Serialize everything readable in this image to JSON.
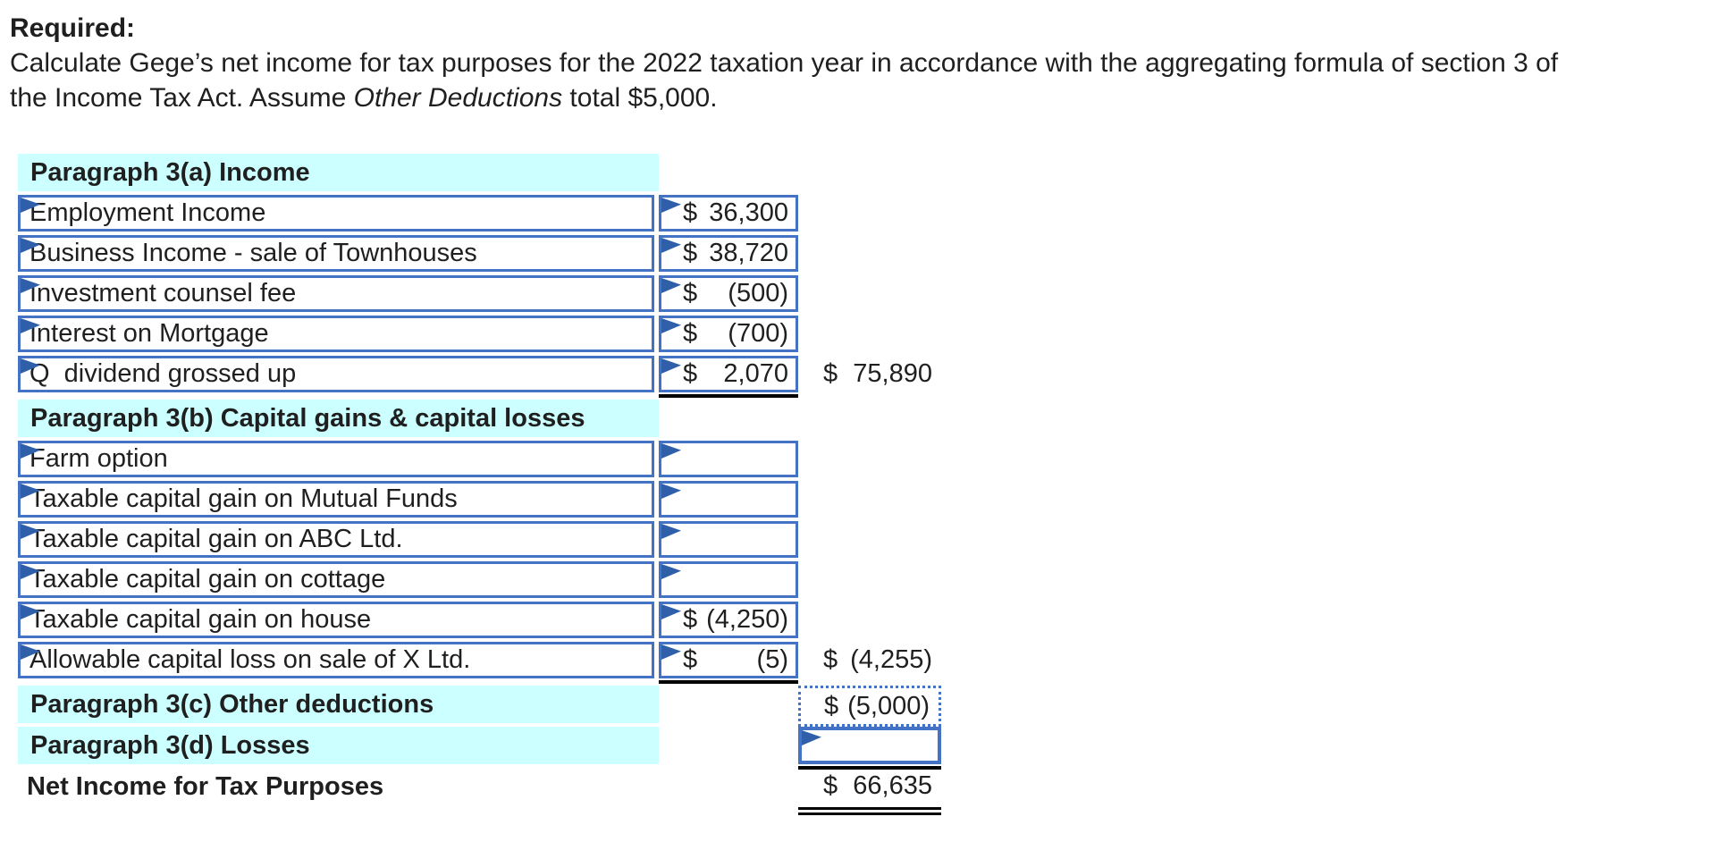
{
  "currency": "$",
  "colors": {
    "section_header_bg": "#CCFFFF",
    "cell_border_blue": "#4472C4",
    "flag_blue": "#2E5FA8",
    "underline_black": "#000000",
    "text": "#1F1F1F"
  },
  "instructions": {
    "heading": "Required:",
    "line1": "Calculate Gege’s net income for tax purposes for the 2022 taxation year in accordance with the aggregating formula of section 3 of",
    "line2_before_italic": "the Income Tax Act. Assume ",
    "line2_italic": "Other Deductions",
    "line2_after_italic": " total $5,000."
  },
  "worksheet": {
    "section_a": {
      "title": "Paragraph 3(a) Income"
    },
    "rows_a": [
      {
        "label": "Employment Income",
        "value": "36,300"
      },
      {
        "label": "Business Income - sale of Townhouses",
        "value": "38,720"
      },
      {
        "label": "Investment counsel fee",
        "value": "(500)"
      },
      {
        "label": "Interest on Mortgage",
        "value": "(700)"
      },
      {
        "label": "Q  dividend grossed up",
        "value": "2,070",
        "subtotal": "75,890"
      }
    ],
    "section_b": {
      "title": "Paragraph 3(b) Capital gains & capital losses"
    },
    "rows_b": [
      {
        "label": "Farm option",
        "value": ""
      },
      {
        "label": "Taxable capital gain on Mutual Funds",
        "value": ""
      },
      {
        "label": "Taxable capital gain on ABC Ltd.",
        "value": ""
      },
      {
        "label": "Taxable capital gain on cottage",
        "value": ""
      },
      {
        "label": "Taxable capital gain on house",
        "value": "(4,250)"
      },
      {
        "label": "Allowable capital loss on sale of X Ltd.",
        "value": "(5)",
        "subtotal": "(4,255)"
      }
    ],
    "section_c": {
      "title": "Paragraph 3(c) Other deductions",
      "value": "(5,000)"
    },
    "section_d": {
      "title": "Paragraph 3(d) Losses",
      "value": ""
    },
    "total": {
      "label": "Net Income for Tax Purposes",
      "value": "66,635"
    }
  }
}
